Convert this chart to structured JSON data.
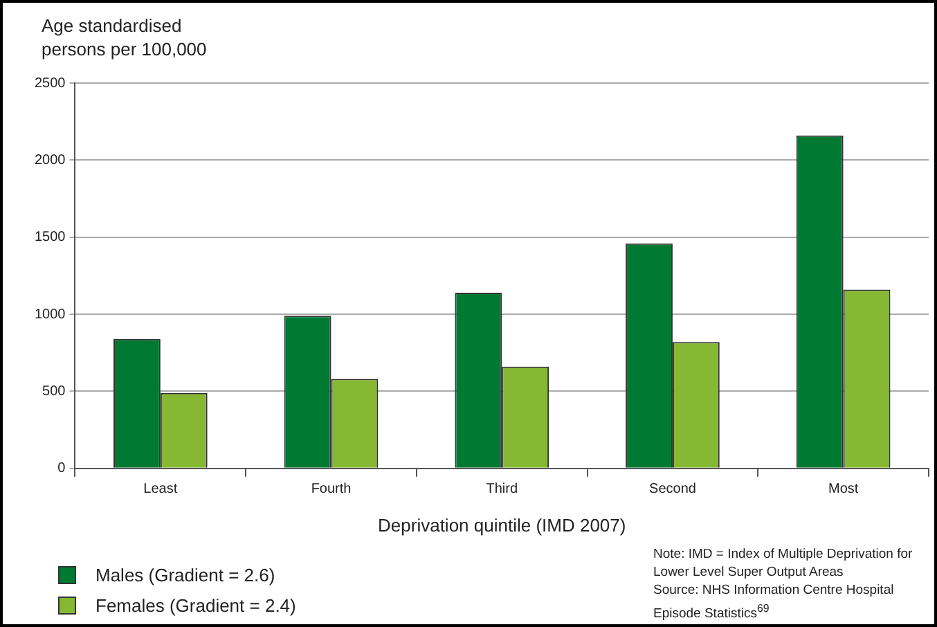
{
  "chart_data": {
    "type": "bar",
    "ylabel": "Age standardised persons per 100,000",
    "xlabel": "Deprivation quintile (IMD 2007)",
    "categories": [
      "Least",
      "Fourth",
      "Third",
      "Second",
      "Most"
    ],
    "series": [
      {
        "name": "Males (Gradient = 2.6)",
        "color": "#007a33",
        "values": [
          840,
          990,
          1140,
          1460,
          2160
        ]
      },
      {
        "name": "Females (Gradient = 2.4)",
        "color": "#86b833",
        "values": [
          490,
          580,
          660,
          820,
          1160
        ]
      }
    ],
    "ylim": [
      0,
      2500
    ],
    "yticks": [
      0,
      500,
      1000,
      1500,
      2000,
      2500
    ],
    "grid": "y",
    "legend": "bottom left",
    "annotations": [
      "Note: IMD = Index of Multiple Deprivation for Lower Level Super Output Areas",
      "Source: NHS Information Centre Hospital Episode Statistics$^{69}$"
    ]
  }
}
